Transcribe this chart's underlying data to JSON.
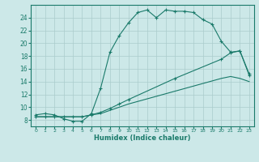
{
  "xlabel": "Humidex (Indice chaleur)",
  "ylabel": "",
  "bg_color": "#cce8e8",
  "line_color": "#1a7a6a",
  "grid_color": "#aacccc",
  "xlim": [
    -0.5,
    23.5
  ],
  "ylim": [
    7,
    26
  ],
  "xticks": [
    0,
    1,
    2,
    3,
    4,
    5,
    6,
    7,
    8,
    9,
    10,
    11,
    12,
    13,
    14,
    15,
    16,
    17,
    18,
    19,
    20,
    21,
    22,
    23
  ],
  "yticks": [
    8,
    10,
    12,
    14,
    16,
    18,
    20,
    22,
    24
  ],
  "curve1_x": [
    0,
    1,
    2,
    3,
    4,
    5,
    6,
    7,
    8,
    9,
    10,
    11,
    12,
    13,
    14,
    15,
    16,
    17,
    18,
    19,
    20,
    21,
    22,
    23
  ],
  "curve1_y": [
    8.8,
    9.0,
    8.8,
    8.2,
    7.8,
    7.8,
    9.0,
    13.0,
    18.6,
    21.2,
    23.2,
    24.8,
    25.2,
    24.0,
    25.2,
    25.0,
    25.0,
    24.8,
    23.7,
    23.0,
    20.3,
    18.6,
    18.8,
    15.0
  ],
  "curve2_x": [
    0,
    1,
    2,
    3,
    4,
    5,
    6,
    7,
    8,
    9,
    10,
    15,
    20,
    21,
    22,
    23
  ],
  "curve2_y": [
    8.5,
    8.5,
    8.5,
    8.5,
    8.5,
    8.5,
    8.8,
    9.2,
    9.8,
    10.5,
    11.2,
    14.5,
    17.5,
    18.5,
    18.8,
    15.2
  ],
  "curve3_x": [
    0,
    1,
    2,
    3,
    4,
    5,
    6,
    7,
    8,
    9,
    10,
    15,
    20,
    21,
    22,
    23
  ],
  "curve3_y": [
    8.5,
    8.5,
    8.5,
    8.5,
    8.5,
    8.5,
    8.8,
    9.0,
    9.5,
    10.0,
    10.5,
    12.5,
    14.5,
    14.8,
    14.5,
    14.0
  ]
}
